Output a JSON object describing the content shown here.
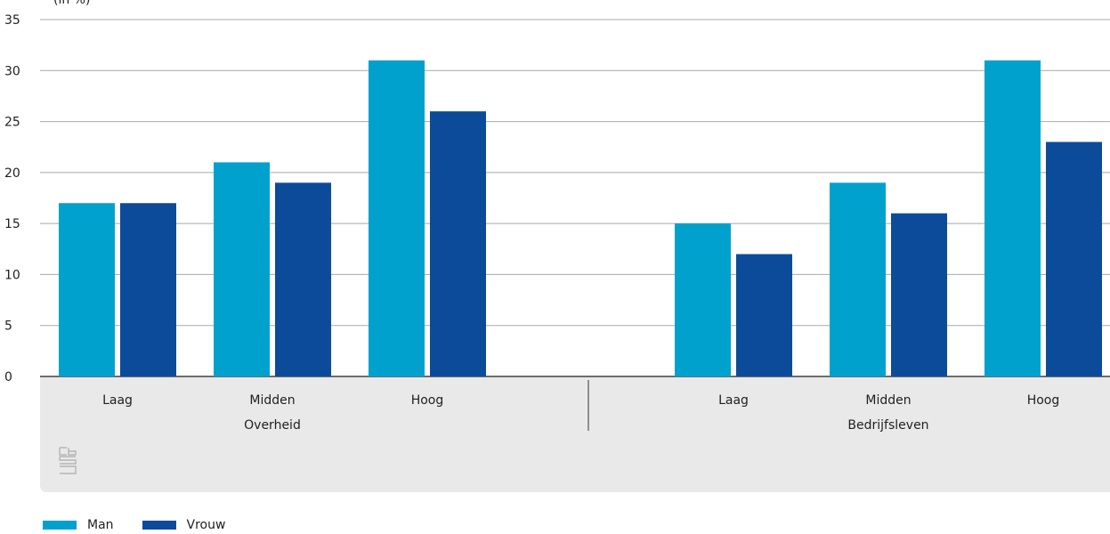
{
  "chart_data": {
    "type": "bar",
    "ylabel": "(in %)",
    "ylim": [
      0,
      35
    ],
    "yticks": [
      0,
      5,
      10,
      15,
      20,
      25,
      30,
      35
    ],
    "grid": true,
    "legend_position": "bottom-left",
    "groups": [
      {
        "label": "Overheid",
        "categories": [
          "Laag",
          "Midden",
          "Hoog"
        ]
      },
      {
        "label": "Bedrijfsleven",
        "categories": [
          "Laag",
          "Midden",
          "Hoog"
        ]
      }
    ],
    "series": [
      {
        "name": "Man",
        "color": "#00a1cd",
        "values": [
          17,
          21,
          31,
          15,
          19,
          31
        ]
      },
      {
        "name": "Vrouw",
        "color": "#0c4b9a",
        "values": [
          17,
          19,
          26,
          12,
          16,
          23
        ]
      }
    ]
  },
  "logo": {
    "icon": "cbs-logo-icon",
    "color": "#b5b5b5"
  },
  "colors": {
    "axis_band": "#e9e9e9",
    "grid": "#a8a8a8",
    "separator": "#8f8f8f"
  }
}
